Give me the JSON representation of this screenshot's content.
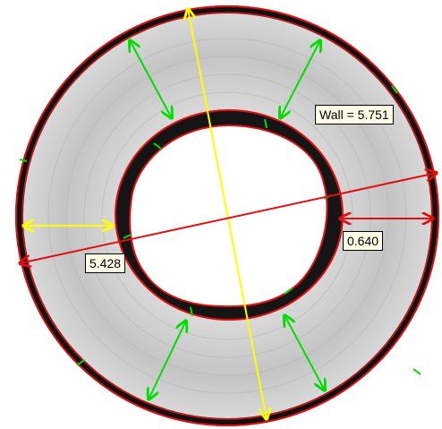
{
  "measurements": {
    "wall_label": "Wall = 5.751",
    "left_label": "5.428",
    "right_label": "0.640"
  },
  "colors": {
    "outline": "#e01010",
    "diameter_line": "#ffff00",
    "wall_arrows": "#00dd00",
    "band": "#111111",
    "ring": "#c8c8c8"
  }
}
